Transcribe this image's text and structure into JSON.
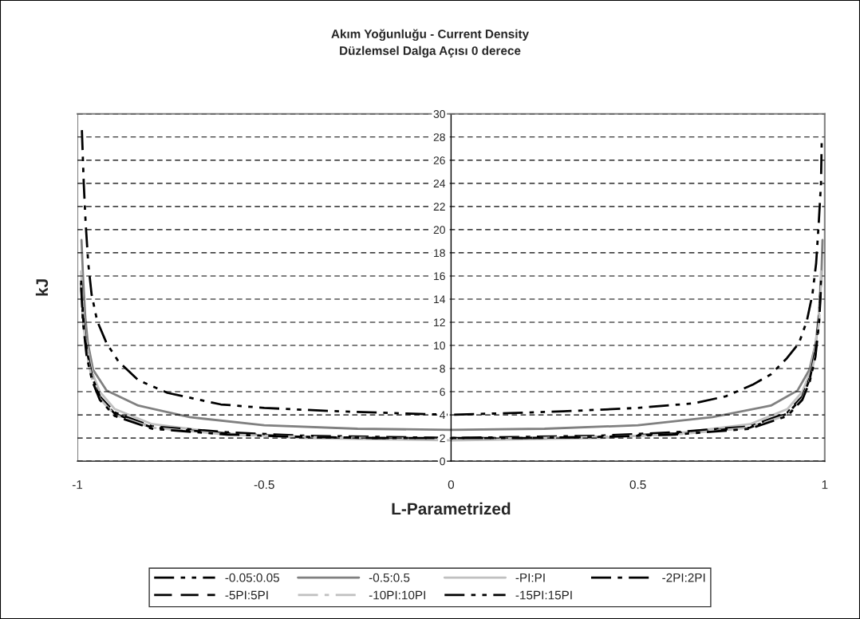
{
  "chart_data": {
    "type": "line",
    "title": "Akım Yoğunluğu - Current Density\nDüzlemsel Dalga Açısı 0 derece",
    "xlabel": "L-Parametrized",
    "ylabel": "kJ",
    "xlim": [
      -1,
      1
    ],
    "ylim": [
      0,
      30
    ],
    "xticks": [
      -1,
      -0.5,
      0,
      0.5,
      1
    ],
    "yticks": [
      0,
      2,
      4,
      6,
      8,
      10,
      12,
      14,
      16,
      18,
      20,
      22,
      24,
      26,
      28,
      30
    ],
    "grid": "y",
    "legend": "bottom",
    "marker": "none",
    "series": [
      {
        "name": "-0.05:0.05",
        "color": "#000000",
        "line_style": "dashdotdot",
        "x": [
          -0.988,
          -0.983,
          -0.978,
          -0.971,
          -0.962,
          -0.947,
          -0.922,
          -0.89,
          -0.837,
          -0.759,
          -0.616,
          -0.5,
          -0.3,
          0,
          0.3,
          0.5,
          0.65,
          0.735,
          0.807,
          0.856,
          0.899,
          0.931,
          0.952,
          0.967,
          0.977,
          0.984,
          0.99,
          0.992
        ],
        "values": [
          28.6,
          24.0,
          20.6,
          17.1,
          14.4,
          12.1,
          10.2,
          8.6,
          7.0,
          5.9,
          4.9,
          4.6,
          4.3,
          4.0,
          4.3,
          4.6,
          5.0,
          5.6,
          6.6,
          7.5,
          8.9,
          10.2,
          12.1,
          14.4,
          17.1,
          20.6,
          24.0,
          27.9
        ]
      },
      {
        "name": "-0.5:0.5",
        "color": "#808080",
        "line_style": "solid",
        "x": [
          -0.989,
          -0.985,
          -0.979,
          -0.972,
          -0.958,
          -0.922,
          -0.837,
          -0.7,
          -0.5,
          -0.25,
          0,
          0.25,
          0.5,
          0.7,
          0.856,
          0.927,
          0.959,
          0.976,
          0.984,
          0.991,
          0.994
        ],
        "values": [
          19.1,
          16.0,
          12.5,
          10.2,
          7.9,
          6.1,
          4.8,
          3.8,
          3.1,
          2.8,
          2.7,
          2.8,
          3.1,
          3.8,
          4.8,
          6.1,
          7.9,
          10.2,
          12.5,
          16.0,
          19.1
        ]
      },
      {
        "name": "-PI:PI",
        "color": "#c0c0c0",
        "line_style": "solid",
        "x": [
          -0.99,
          -0.985,
          -0.975,
          -0.96,
          -0.94,
          -0.9,
          -0.8,
          -0.6,
          -0.4,
          -0.2,
          0,
          0.2,
          0.4,
          0.6,
          0.8,
          0.9,
          0.94,
          0.96,
          0.975,
          0.985,
          0.99
        ],
        "values": [
          16.4,
          13.0,
          10.0,
          7.6,
          6.0,
          4.5,
          3.2,
          2.4,
          2.0,
          1.9,
          1.8,
          1.9,
          2.0,
          2.4,
          3.2,
          4.5,
          6.0,
          7.6,
          10.0,
          13.0,
          16.4
        ]
      },
      {
        "name": "-2PI:2PI",
        "color": "#000000",
        "line_style": "dashdot",
        "x": [
          -0.99,
          -0.985,
          -0.975,
          -0.96,
          -0.94,
          -0.9,
          -0.8,
          -0.6,
          -0.4,
          -0.2,
          0,
          0.2,
          0.4,
          0.6,
          0.8,
          0.9,
          0.94,
          0.96,
          0.975,
          0.985,
          0.99
        ],
        "values": [
          15.6,
          12.6,
          9.6,
          7.2,
          5.6,
          4.2,
          3.0,
          2.5,
          2.2,
          2.1,
          2.0,
          2.1,
          2.2,
          2.5,
          3.0,
          4.2,
          5.6,
          7.2,
          9.6,
          12.6,
          15.6
        ]
      },
      {
        "name": "-5PI:5PI",
        "color": "#000000",
        "line_style": "dashed",
        "x": [
          -0.99,
          -0.985,
          -0.975,
          -0.96,
          -0.94,
          -0.9,
          -0.8,
          -0.6,
          -0.4,
          -0.2,
          0,
          0.2,
          0.4,
          0.6,
          0.8,
          0.9,
          0.94,
          0.96,
          0.975,
          0.985,
          0.99
        ],
        "values": [
          15.4,
          12.4,
          9.4,
          7.1,
          5.5,
          4.1,
          2.9,
          2.4,
          2.1,
          2.0,
          2.0,
          2.0,
          2.1,
          2.4,
          2.9,
          4.1,
          5.5,
          7.1,
          9.4,
          12.4,
          15.4
        ]
      },
      {
        "name": "-10PI:10PI",
        "color": "#c0c0c0",
        "line_style": "dashdot",
        "x": [
          -0.99,
          -0.985,
          -0.975,
          -0.96,
          -0.94,
          -0.9,
          -0.8,
          -0.6,
          -0.4,
          -0.2,
          0,
          0.2,
          0.4,
          0.6,
          0.8,
          0.9,
          0.94,
          0.96,
          0.975,
          0.985,
          0.99
        ],
        "values": [
          15.2,
          12.2,
          9.2,
          7.0,
          5.4,
          4.0,
          2.9,
          2.3,
          2.1,
          2.0,
          1.9,
          2.0,
          2.1,
          2.3,
          2.9,
          4.0,
          5.4,
          7.0,
          9.2,
          12.2,
          15.2
        ]
      },
      {
        "name": "-15PI:15PI",
        "color": "#000000",
        "line_style": "dashdotdot",
        "x": [
          -0.99,
          -0.985,
          -0.975,
          -0.96,
          -0.94,
          -0.9,
          -0.8,
          -0.6,
          -0.4,
          -0.2,
          0,
          0.2,
          0.4,
          0.6,
          0.8,
          0.9,
          0.94,
          0.96,
          0.975,
          0.985,
          0.99
        ],
        "values": [
          15.0,
          12.0,
          9.0,
          6.9,
          5.3,
          3.9,
          2.8,
          2.3,
          2.1,
          2.0,
          2.0,
          2.0,
          2.1,
          2.3,
          2.8,
          3.9,
          5.3,
          6.9,
          9.0,
          12.0,
          15.0
        ]
      }
    ]
  }
}
